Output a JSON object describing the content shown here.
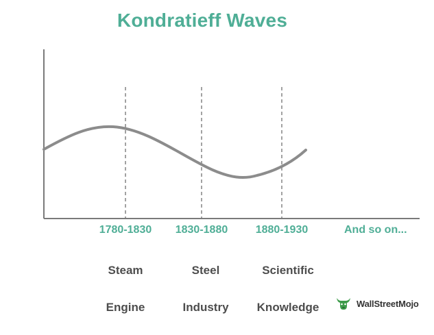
{
  "title": "Kondratieff Waves",
  "periods": [
    {
      "years": "1780-1830",
      "era_line1": "Steam",
      "era_line2": "Engine"
    },
    {
      "years": "1830-1880",
      "era_line1": "Steel",
      "era_line2": "Industry"
    },
    {
      "years": "1880-1930",
      "era_line1": "Scientific",
      "era_line2": "Knowledge"
    }
  ],
  "continuation": "And so on...",
  "logo": {
    "text": "WallStreetMojo",
    "icon": "bull-mascot-icon"
  },
  "colors": {
    "accent": "#4fae96",
    "era_text": "#4d4d4d",
    "curve": "#8c8c8c",
    "axis": "#7a7a7a",
    "divider": "#7a7a7a"
  }
}
